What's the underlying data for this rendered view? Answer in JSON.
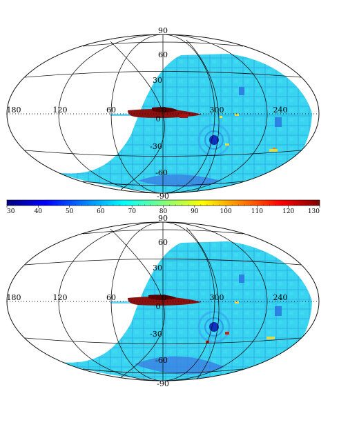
{
  "maps": [
    {
      "lat_labels": [
        "90",
        "60",
        "30",
        "0",
        "-30",
        "-60",
        "-90"
      ],
      "lon_labels": [
        "180",
        "120",
        "60",
        "0",
        "300",
        "240"
      ]
    },
    {
      "lat_labels": [
        "90",
        "60",
        "30",
        "0",
        "-30",
        "-60",
        "-90"
      ],
      "lon_labels": [
        "180",
        "120",
        "60",
        "0",
        "300",
        "240"
      ]
    }
  ],
  "colorbar": {
    "ticks": [
      "30",
      "40",
      "50",
      "60",
      "70",
      "80",
      "90",
      "100",
      "110",
      "120",
      "130"
    ],
    "colors": [
      "#00007f",
      "#0000ff",
      "#007fff",
      "#00ffff",
      "#7fff7f",
      "#ffff00",
      "#ff7f00",
      "#ff0000",
      "#7f0000"
    ]
  }
}
